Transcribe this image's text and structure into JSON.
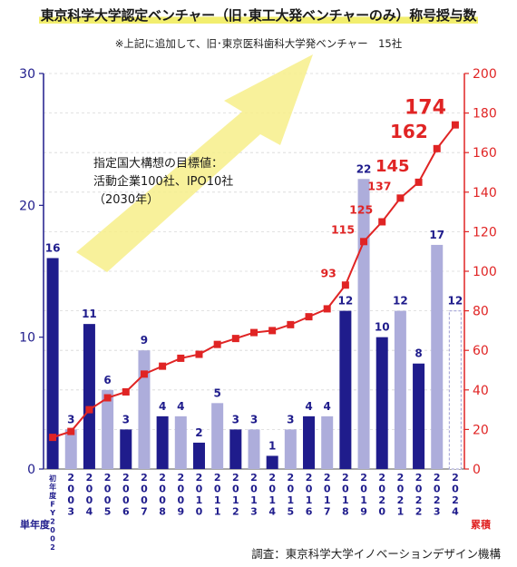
{
  "header": {
    "title": "東京科学大学認定ベンチャー（旧･東工大発ベンチャーのみ）称号授与数",
    "subtitle": "※上記に追加して、旧･東京医科歯科大学発ベンチャー　15社"
  },
  "annotation": {
    "lines": [
      "指定国大構想の目標値：",
      "活動企業100社、IPO10社",
      "（2030年）"
    ]
  },
  "footer": {
    "source": "調査：東京科学大学イノベーションデザイン機構"
  },
  "colors": {
    "bar_dark": "#1f1c8c",
    "bar_light": "#adaddb",
    "line": "#e02424",
    "axis_left": "#1f1c8c",
    "axis_right": "#e02424",
    "arrow": "#f7ef8a",
    "grid": "#d8d8d8"
  },
  "chart_data": {
    "type": "bar",
    "categories": [
      "初年度FY2002",
      "2003",
      "2004",
      "2005",
      "2006",
      "2007",
      "2008",
      "2009",
      "2010",
      "2011",
      "2012",
      "2013",
      "2014",
      "2015",
      "2016",
      "2017",
      "2018",
      "2019",
      "2020",
      "2021",
      "2022",
      "2023",
      "2024"
    ],
    "tick_labels": [
      [
        "初",
        "年",
        "度",
        "F",
        "Y",
        "2",
        "0",
        "0",
        "2"
      ],
      [
        "2",
        "0",
        "0",
        "3"
      ],
      [
        "2",
        "0",
        "0",
        "4"
      ],
      [
        "2",
        "0",
        "0",
        "5"
      ],
      [
        "2",
        "0",
        "0",
        "6"
      ],
      [
        "2",
        "0",
        "0",
        "7"
      ],
      [
        "2",
        "0",
        "0",
        "8"
      ],
      [
        "2",
        "0",
        "0",
        "9"
      ],
      [
        "2",
        "0",
        "1",
        "0"
      ],
      [
        "2",
        "0",
        "1",
        "1"
      ],
      [
        "2",
        "0",
        "1",
        "2"
      ],
      [
        "2",
        "0",
        "1",
        "3"
      ],
      [
        "2",
        "0",
        "1",
        "4"
      ],
      [
        "2",
        "0",
        "1",
        "5"
      ],
      [
        "2",
        "0",
        "1",
        "6"
      ],
      [
        "2",
        "0",
        "1",
        "7"
      ],
      [
        "2",
        "0",
        "1",
        "8"
      ],
      [
        "2",
        "0",
        "1",
        "9"
      ],
      [
        "2",
        "0",
        "2",
        "0"
      ],
      [
        "2",
        "0",
        "2",
        "1"
      ],
      [
        "2",
        "0",
        "2",
        "2"
      ],
      [
        "2",
        "0",
        "2",
        "3"
      ],
      [
        "2",
        "0",
        "2",
        "4"
      ]
    ],
    "series": [
      {
        "name": "単年度",
        "values": [
          16,
          3,
          11,
          6,
          3,
          9,
          4,
          4,
          2,
          5,
          3,
          3,
          1,
          3,
          4,
          4,
          12,
          22,
          10,
          12,
          8,
          17,
          12
        ],
        "shade": [
          "dark",
          "light",
          "dark",
          "light",
          "dark",
          "light",
          "dark",
          "light",
          "dark",
          "light",
          "dark",
          "light",
          "dark",
          "light",
          "dark",
          "light",
          "dark",
          "light",
          "dark",
          "light",
          "dark",
          "light",
          "dashed"
        ],
        "labels": [
          "16",
          "3",
          "11",
          "6",
          "3",
          "9",
          "4",
          "4",
          "2",
          "5",
          "3",
          "3",
          "1",
          "3",
          "4",
          "4",
          "12",
          "22",
          "10",
          "12",
          "8",
          "17",
          "12"
        ],
        "axis": "left"
      },
      {
        "name": "累積",
        "values": [
          16,
          19,
          30,
          36,
          39,
          48,
          52,
          56,
          58,
          63,
          66,
          69,
          70,
          73,
          77,
          81,
          93,
          115,
          125,
          137,
          145,
          162,
          174
        ],
        "labels": [
          "93",
          "115",
          "125",
          "137",
          "145",
          "162",
          "174"
        ],
        "label_from_index": 16,
        "axis": "right"
      }
    ],
    "y_left": {
      "label": "単年度",
      "min": 0,
      "max": 30,
      "ticks": [
        "0",
        "10",
        "20",
        "30"
      ]
    },
    "y_right": {
      "label": "累積",
      "min": 0,
      "max": 200,
      "ticks": [
        "0",
        "20",
        "40",
        "60",
        "80",
        "100",
        "120",
        "140",
        "160",
        "180",
        "200"
      ]
    }
  }
}
